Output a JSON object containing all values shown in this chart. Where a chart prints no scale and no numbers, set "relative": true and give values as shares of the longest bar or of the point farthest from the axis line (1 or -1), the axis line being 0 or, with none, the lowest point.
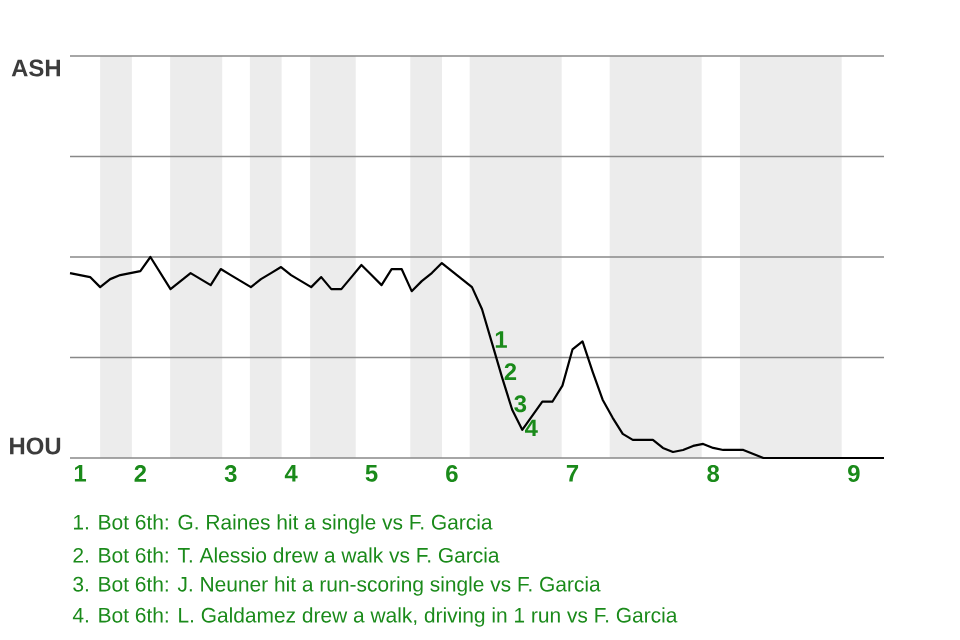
{
  "chart_data": {
    "type": "line",
    "relative": true,
    "categories": [
      null,
      "1",
      null,
      null,
      null,
      null,
      null,
      "2",
      null,
      null,
      null,
      null,
      null,
      null,
      null,
      null,
      "3",
      null,
      null,
      null,
      null,
      null,
      "4",
      null,
      null,
      null,
      null,
      null,
      null,
      null,
      "5",
      null,
      null,
      null,
      null,
      null,
      null,
      null,
      "6",
      null,
      null,
      null,
      null,
      null,
      null,
      null,
      null,
      null,
      null,
      null,
      "7",
      null,
      null,
      null,
      null,
      null,
      null,
      null,
      null,
      null,
      null,
      null,
      null,
      null,
      "8",
      null,
      null,
      null,
      null,
      null,
      null,
      null,
      null,
      null,
      null,
      null,
      null,
      null,
      "9",
      null,
      null,
      null
    ],
    "series": [
      {
        "color": "#000000",
        "values": [
          0.92,
          0.91,
          0.9,
          0.85,
          0.89,
          0.91,
          0.92,
          0.93,
          1,
          0.92,
          0.84,
          0.88,
          0.92,
          0.89,
          0.86,
          0.94,
          0.91,
          0.88,
          0.85,
          0.89,
          0.92,
          0.95,
          0.91,
          0.88,
          0.85,
          0.9,
          0.84,
          0.84,
          0.9,
          0.96,
          0.91,
          0.86,
          0.94,
          0.94,
          0.83,
          0.88,
          0.92,
          0.97,
          0.93,
          0.89,
          0.85,
          0.74,
          0.57,
          0.4,
          0.24,
          0.14,
          0.21,
          0.28,
          0.28,
          0.36,
          0.54,
          0.58,
          0.43,
          0.29,
          0.2,
          0.12,
          0.09,
          0.09,
          0.09,
          0.05,
          0.03,
          0.04,
          0.06,
          0.07,
          0.05,
          0.04,
          0.04,
          0.04,
          0.02,
          0,
          0,
          0,
          0,
          0,
          0,
          0,
          0,
          0,
          0,
          0,
          0,
          0
        ]
      }
    ],
    "marker": "none",
    "line_style": "solid",
    "ref_lines": [
      {
        "axis": "y",
        "value": 0.5,
        "color": "#888888"
      },
      {
        "axis": "y",
        "value": 1,
        "color": "#888888"
      },
      {
        "axis": "y",
        "value": 1.5,
        "color": "#888888"
      }
    ],
    "annotations": [
      "ASH",
      "HOU",
      {
        "text": "1",
        "y": 0.59
      },
      {
        "text": "2",
        "y": 0.43
      },
      {
        "text": "3",
        "y": 0.27
      },
      {
        "text": "4",
        "y": 0.15
      },
      "1. Bot 6th: G. Raines hit a single vs F. Garcia",
      "2. Bot 6th: T. Alessio drew a walk vs F. Garcia",
      "3. Bot 6th: J. Neuner hit a run-scoring single vs F. Garcia",
      "4. Bot 6th: L. Galdamez drew a walk, driving in 1 run vs F. Garcia"
    ]
  }
}
